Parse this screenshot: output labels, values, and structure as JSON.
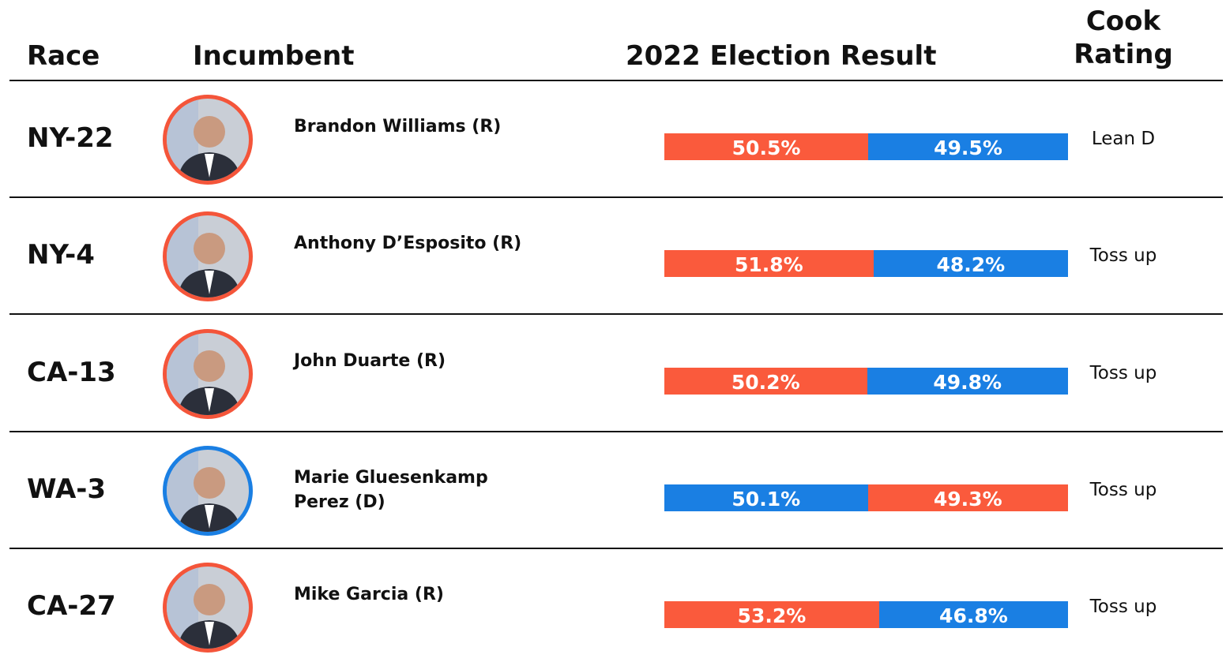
{
  "table": {
    "headers": [
      "Race",
      "Incumbent",
      "2022 Election Result",
      "Cook Rating"
    ],
    "rows": [
      {
        "race": "NY-22",
        "incumbent": "Brandon Williams (R)",
        "ring_color": "#f4553a",
        "result": [
          {
            "value": 50.5,
            "label": "50.5%",
            "color": "#fa5a3c"
          },
          {
            "value": 49.5,
            "label": "49.5%",
            "color": "#1a7fe3"
          }
        ],
        "rating": "Lean D"
      },
      {
        "race": "NY-4",
        "incumbent": "Anthony D’Esposito (R)",
        "ring_color": "#f4553a",
        "result": [
          {
            "value": 51.8,
            "label": "51.8%",
            "color": "#fa5a3c"
          },
          {
            "value": 48.2,
            "label": "48.2%",
            "color": "#1a7fe3"
          }
        ],
        "rating": "Toss up"
      },
      {
        "race": "CA-13",
        "incumbent": "John Duarte (R)",
        "ring_color": "#f4553a",
        "result": [
          {
            "value": 50.2,
            "label": "50.2%",
            "color": "#fa5a3c"
          },
          {
            "value": 49.8,
            "label": "49.8%",
            "color": "#1a7fe3"
          }
        ],
        "rating": "Toss up"
      },
      {
        "race": "WA-3",
        "incumbent": "Marie Gluesenkamp Perez (D)",
        "ring_color": "#1a7fe3",
        "result": [
          {
            "value": 50.1,
            "label": "50.1%",
            "color": "#1a7fe3"
          },
          {
            "value": 49.3,
            "label": "49.3%",
            "color": "#fa5a3c"
          }
        ],
        "rating": "Toss up"
      },
      {
        "race": "CA-27",
        "incumbent": "Mike Garcia (R)",
        "ring_color": "#f4553a",
        "result": [
          {
            "value": 53.2,
            "label": "53.2%",
            "color": "#fa5a3c"
          },
          {
            "value": 46.8,
            "label": "46.8%",
            "color": "#1a7fe3"
          }
        ],
        "rating": "Toss up"
      }
    ]
  }
}
